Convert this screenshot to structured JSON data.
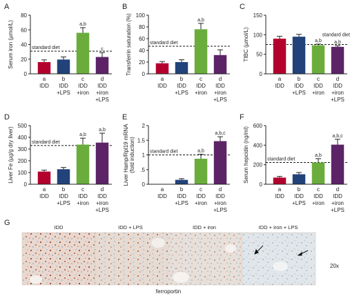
{
  "colors": [
    "#b3002d",
    "#22427a",
    "#6aad3d",
    "#5c2367"
  ],
  "chart_data": [
    {
      "type": "bar",
      "panel": "A",
      "ylabel": "Serum iron (µmol/L)",
      "ylim": [
        0,
        80
      ],
      "yticks": [
        0,
        20,
        40,
        60,
        80
      ],
      "categories": [
        "IDD",
        "IDD +LPS",
        "IDD +iron",
        "IDD +iron +LPS"
      ],
      "letters": [
        "a",
        "b",
        "c",
        "d"
      ],
      "values": [
        16,
        19.5,
        56,
        23
      ],
      "errors": [
        3,
        3.5,
        7,
        6
      ],
      "sig": [
        "",
        "",
        "a,b",
        "c"
      ],
      "reference": {
        "label": "standard diet",
        "value": 31,
        "label_pos": "left"
      }
    },
    {
      "type": "bar",
      "panel": "B",
      "ylabel": "Transferrin saturation (%)",
      "ylim": [
        0,
        100
      ],
      "yticks": [
        0,
        20,
        40,
        60,
        80,
        100
      ],
      "categories": [
        "IDD",
        "IDD +LPS",
        "IDD +iron",
        "IDD +iron +LPS"
      ],
      "letters": [
        "a",
        "b",
        "c",
        "d"
      ],
      "values": [
        18,
        20,
        76,
        32
      ],
      "errors": [
        3,
        4,
        10,
        9
      ],
      "sig": [
        "",
        "",
        "a,b",
        ""
      ],
      "reference": {
        "label": "standard diet",
        "value": 47,
        "label_pos": "left"
      }
    },
    {
      "type": "bar",
      "panel": "C",
      "ylabel": "TIBC (µmol/L)",
      "ylim": [
        0,
        150
      ],
      "yticks": [
        0,
        50,
        100,
        150
      ],
      "categories": [
        "IDD",
        "IDD +LPS",
        "IDD +iron",
        "IDD +iron +LPS"
      ],
      "letters": [
        "a",
        "b",
        "c",
        "d"
      ],
      "values": [
        90,
        95,
        73,
        69
      ],
      "errors": [
        6,
        6,
        3,
        3
      ],
      "sig": [
        "",
        "",
        "a,b",
        "a,b"
      ],
      "reference": {
        "label": "standard diet",
        "value": 75,
        "label_pos": "right"
      }
    },
    {
      "type": "bar",
      "panel": "D",
      "ylabel": "Liver Fe (µg/g dry liver)",
      "ylim": [
        0,
        500
      ],
      "yticks": [
        0,
        100,
        200,
        300,
        400,
        500
      ],
      "categories": [
        "IDD",
        "IDD +LPS",
        "IDD +iron",
        "IDD +iron +LPS"
      ],
      "letters": [
        "a",
        "b",
        "c",
        "d"
      ],
      "values": [
        108,
        128,
        338,
        355
      ],
      "errors": [
        12,
        15,
        55,
        80
      ],
      "sig": [
        "",
        "",
        "a,b",
        "a,b"
      ],
      "reference": {
        "label": "standard diet",
        "value": 330,
        "label_pos": "left"
      }
    },
    {
      "type": "bar",
      "panel": "E",
      "ylabel": "Liver Hamp/Rpl19 mRNA (fold induction)",
      "ylim": [
        0,
        2
      ],
      "yticks": [
        0,
        0.5,
        1,
        1.5,
        2
      ],
      "ytick_labels": [
        "0",
        ".5",
        "1",
        "1.5",
        "2"
      ],
      "categories": [
        "IDD",
        "IDD +LPS",
        "IDD +iron",
        "IDD +iron +LPS"
      ],
      "letters": [
        "a",
        "b",
        "c",
        "d"
      ],
      "values": [
        0,
        0.15,
        0.87,
        1.47
      ],
      "errors": [
        0,
        0.04,
        0.15,
        0.15
      ],
      "sig": [
        "",
        "",
        "a,b",
        "a,b,c"
      ],
      "reference": {
        "label": "standard diet",
        "value": 1,
        "label_pos": "left"
      }
    },
    {
      "type": "bar",
      "panel": "F",
      "ylabel": "Serum hepcidin (ng/ml)",
      "ylim": [
        0,
        600
      ],
      "yticks": [
        0,
        200,
        400,
        600
      ],
      "categories": [
        "IDD",
        "IDD +LPS",
        "IDD +iron",
        "IDD +iron +LPS"
      ],
      "letters": [
        "a",
        "b",
        "c",
        "d"
      ],
      "values": [
        68,
        102,
        222,
        405
      ],
      "errors": [
        12,
        18,
        40,
        55
      ],
      "sig": [
        "",
        "",
        "a,b",
        "a,b,c"
      ],
      "reference": {
        "label": "standard diet",
        "value": 222,
        "label_pos": "left"
      }
    }
  ],
  "panel_g": {
    "letter": "G",
    "labels": [
      "IDD",
      "IDD + LPS",
      "IDD + iron",
      "IDD + iron + LPS"
    ],
    "magnification": "20x",
    "stain": "ferroportin"
  }
}
